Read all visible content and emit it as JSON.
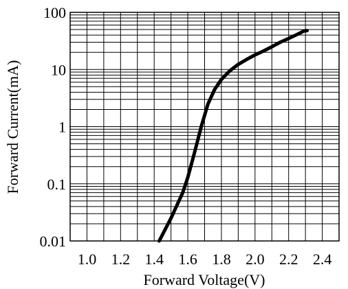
{
  "chart_data": {
    "type": "line",
    "title": "",
    "xlabel": "Forward Voltage(V)",
    "ylabel": "Forward Current(mA)",
    "xlim": [
      0.9,
      2.5
    ],
    "ylim": [
      0.01,
      100
    ],
    "yscale": "log",
    "grid": true,
    "x_ticks": [
      1.0,
      1.2,
      1.4,
      1.6,
      1.8,
      2.0,
      2.2,
      2.4
    ],
    "x_tick_labels": [
      "1.0",
      "1.2",
      "1.4",
      "1.6",
      "1.8",
      "2.0",
      "2.2",
      "2.4"
    ],
    "y_ticks": [
      0.01,
      0.1,
      1,
      10,
      100
    ],
    "y_tick_labels": [
      "0.01",
      "0.1",
      "1",
      "10",
      "100"
    ],
    "series": [
      {
        "x": [
          1.43,
          1.5,
          1.57,
          1.6,
          1.64,
          1.68,
          1.72,
          1.76,
          1.8,
          1.85,
          1.9,
          1.95,
          2.0,
          2.05,
          2.1,
          2.15,
          2.2,
          2.25,
          2.29,
          2.31
        ],
        "y": [
          0.01,
          0.025,
          0.07,
          0.13,
          0.35,
          1.0,
          2.5,
          4.5,
          6.7,
          9.5,
          12.3,
          15.0,
          18.0,
          21.0,
          25.0,
          30.0,
          35.0,
          41.0,
          47.0,
          48.0
        ]
      }
    ]
  }
}
